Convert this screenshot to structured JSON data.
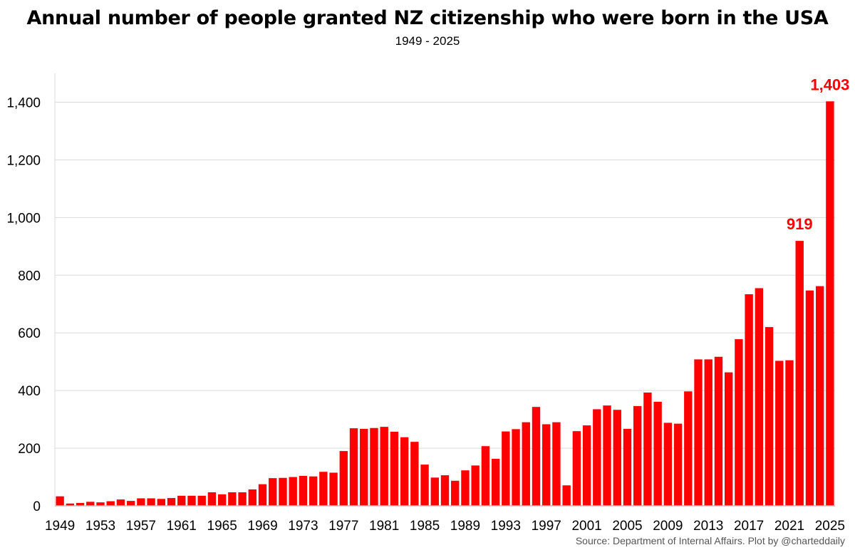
{
  "title": "Annual number of people granted NZ citizenship who were born in the USA",
  "subtitle": "1949 - 2025",
  "source": "Source: Department of Internal Affairs.  Plot by @charteddaily",
  "colors": {
    "bar": "#ff0000",
    "label": "#ff0000",
    "grid": "#d9d9d9",
    "axis": "#bfbfbf"
  },
  "chart_data": {
    "type": "bar",
    "x": [
      1949,
      1950,
      1951,
      1952,
      1953,
      1954,
      1955,
      1956,
      1957,
      1958,
      1959,
      1960,
      1961,
      1962,
      1963,
      1964,
      1965,
      1966,
      1967,
      1968,
      1969,
      1970,
      1971,
      1972,
      1973,
      1974,
      1975,
      1976,
      1977,
      1978,
      1979,
      1980,
      1981,
      1982,
      1983,
      1984,
      1985,
      1986,
      1987,
      1988,
      1989,
      1990,
      1991,
      1992,
      1993,
      1994,
      1995,
      1996,
      1997,
      1998,
      1999,
      2000,
      2001,
      2002,
      2003,
      2004,
      2005,
      2006,
      2007,
      2008,
      2009,
      2010,
      2011,
      2012,
      2013,
      2014,
      2015,
      2016,
      2017,
      2018,
      2019,
      2020,
      2021,
      2022,
      2023,
      2024,
      2025
    ],
    "values": [
      33,
      8,
      10,
      14,
      12,
      16,
      22,
      17,
      26,
      26,
      24,
      27,
      35,
      35,
      35,
      47,
      40,
      47,
      47,
      57,
      75,
      96,
      97,
      100,
      104,
      102,
      118,
      115,
      190,
      269,
      267,
      270,
      274,
      257,
      238,
      222,
      143,
      98,
      106,
      87,
      123,
      140,
      207,
      163,
      258,
      266,
      290,
      343,
      283,
      290,
      71,
      259,
      279,
      335,
      348,
      333,
      267,
      346,
      393,
      361,
      288,
      285,
      397,
      508,
      508,
      517,
      463,
      578,
      734,
      755,
      620,
      503,
      505,
      919,
      747,
      762,
      1403
    ],
    "xtick_labels": [
      "1949",
      "1953",
      "1957",
      "1961",
      "1965",
      "1969",
      "1973",
      "1977",
      "1981",
      "1985",
      "1989",
      "1993",
      "1997",
      "2001",
      "2005",
      "2009",
      "2013",
      "2017",
      "2021",
      "2025"
    ],
    "ytick_labels": [
      "0",
      "200",
      "400",
      "600",
      "800",
      "1,000",
      "1,200",
      "1,400"
    ],
    "ylim": [
      0,
      1500
    ],
    "grid": true,
    "annotations": [
      {
        "x": 2022,
        "text": "919"
      },
      {
        "x": 2025,
        "text": "1,403"
      }
    ]
  }
}
